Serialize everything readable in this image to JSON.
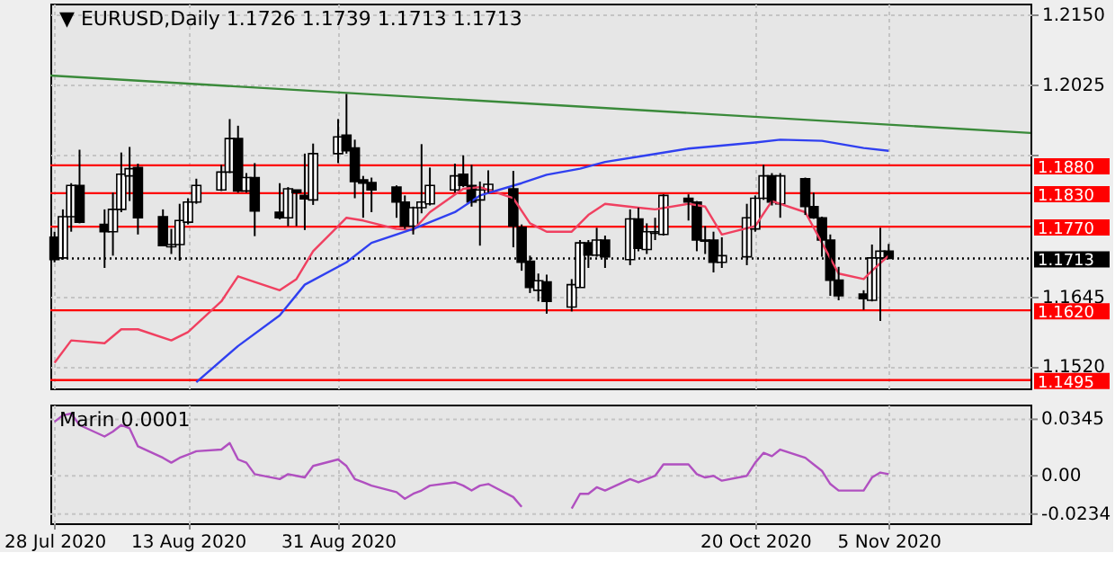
{
  "chart_data": [
    {
      "type": "candlestick",
      "title": "▼ EURUSD,Daily  1.1726 1.1739 1.1713 1.1713",
      "x": [
        "2020-07-28",
        "2020-07-29",
        "2020-07-30",
        "2020-07-31",
        "2020-08-03",
        "2020-08-04",
        "2020-08-05",
        "2020-08-06",
        "2020-08-07",
        "2020-08-10",
        "2020-08-11",
        "2020-08-12",
        "2020-08-13",
        "2020-08-14",
        "2020-08-17",
        "2020-08-18",
        "2020-08-19",
        "2020-08-20",
        "2020-08-21",
        "2020-08-24",
        "2020-08-25",
        "2020-08-26",
        "2020-08-27",
        "2020-08-28",
        "2020-08-31",
        "2020-09-01",
        "2020-09-02",
        "2020-09-03",
        "2020-09-04",
        "2020-09-07",
        "2020-09-08",
        "2020-09-09",
        "2020-09-10",
        "2020-09-11",
        "2020-09-14",
        "2020-09-15",
        "2020-09-16",
        "2020-09-17",
        "2020-09-18",
        "2020-09-21",
        "2020-09-22",
        "2020-09-23",
        "2020-09-24",
        "2020-09-25",
        "2020-09-28",
        "2020-09-29",
        "2020-09-30",
        "2020-10-01",
        "2020-10-02",
        "2020-10-05",
        "2020-10-06",
        "2020-10-07",
        "2020-10-08",
        "2020-10-09",
        "2020-10-12",
        "2020-10-13",
        "2020-10-14",
        "2020-10-15",
        "2020-10-16",
        "2020-10-19",
        "2020-10-20",
        "2020-10-21",
        "2020-10-22",
        "2020-10-23",
        "2020-10-26",
        "2020-10-27",
        "2020-10-28",
        "2020-10-29",
        "2020-10-30",
        "2020-11-02",
        "2020-11-03",
        "2020-11-04",
        "2020-11-05"
      ],
      "ohlc": [
        [
          1.1751,
          1.1761,
          1.1706,
          1.1711
        ],
        [
          1.1714,
          1.1801,
          1.1711,
          1.1788
        ],
        [
          1.1788,
          1.1848,
          1.1761,
          1.1844
        ],
        [
          1.1844,
          1.1908,
          1.1776,
          1.1778
        ],
        [
          1.1774,
          1.1801,
          1.1696,
          1.1761
        ],
        [
          1.1761,
          1.1831,
          1.1718,
          1.1801
        ],
        [
          1.1801,
          1.1903,
          1.1796,
          1.1864
        ],
        [
          1.1861,
          1.1913,
          1.1816,
          1.1874
        ],
        [
          1.1876,
          1.1883,
          1.1756,
          1.1786
        ],
        [
          1.1788,
          1.1801,
          1.1736,
          1.1736
        ],
        [
          1.1734,
          1.1766,
          1.1721,
          1.1738
        ],
        [
          1.1738,
          1.1811,
          1.1709,
          1.1781
        ],
        [
          1.1778,
          1.1821,
          1.1774,
          1.1814
        ],
        [
          1.1814,
          1.1856,
          1.1811,
          1.1844
        ],
        [
          1.1836,
          1.1881,
          1.1834,
          1.1868
        ],
        [
          1.1868,
          1.1963,
          1.1866,
          1.1928
        ],
        [
          1.1928,
          1.1951,
          1.1831,
          1.1834
        ],
        [
          1.1834,
          1.1866,
          1.1831,
          1.1858
        ],
        [
          1.1858,
          1.1884,
          1.1753,
          1.1798
        ],
        [
          1.1796,
          1.1848,
          1.1783,
          1.1786
        ],
        [
          1.1786,
          1.1841,
          1.1771,
          1.1838
        ],
        [
          1.1836,
          1.1836,
          1.1771,
          1.1831
        ],
        [
          1.1826,
          1.1901,
          1.1764,
          1.182
        ],
        [
          1.1818,
          1.1919,
          1.1809,
          1.1901
        ],
        [
          1.1901,
          1.1963,
          1.1884,
          1.1931
        ],
        [
          1.1934,
          1.2008,
          1.1901,
          1.1906
        ],
        [
          1.1911,
          1.1926,
          1.1821,
          1.1851
        ],
        [
          1.1854,
          1.1861,
          1.1786,
          1.1848
        ],
        [
          1.1849,
          1.1858,
          1.1796,
          1.1836
        ],
        [
          1.1841,
          1.1844,
          1.1786,
          1.1814
        ],
        [
          1.1814,
          1.1826,
          1.1766,
          1.1771
        ],
        [
          1.1771,
          1.1806,
          1.1756,
          1.1804
        ],
        [
          1.1804,
          1.1918,
          1.1794,
          1.1814
        ],
        [
          1.1811,
          1.1876,
          1.1808,
          1.1844
        ],
        [
          1.1836,
          1.1883,
          1.1831,
          1.1861
        ],
        [
          1.1864,
          1.1898,
          1.1841,
          1.1844
        ],
        [
          1.1844,
          1.1881,
          1.1806,
          1.1814
        ],
        [
          1.1818,
          1.1851,
          1.1736,
          1.1836
        ],
        [
          1.1836,
          1.1871,
          1.1831,
          1.1846
        ],
        [
          1.1838,
          1.187,
          1.1733,
          1.1771
        ],
        [
          1.1769,
          1.1774,
          1.1691,
          1.1706
        ],
        [
          1.1708,
          1.1718,
          1.1651,
          1.1661
        ],
        [
          1.1656,
          1.1686,
          1.1636,
          1.1673
        ],
        [
          1.1671,
          1.1684,
          1.1614,
          1.1636
        ],
        [
          1.1626,
          1.1676,
          1.1618,
          1.1666
        ],
        [
          1.1661,
          1.1746,
          1.1661,
          1.1741
        ],
        [
          1.1741,
          1.1746,
          1.1696,
          1.1719
        ],
        [
          1.1719,
          1.1768,
          1.1716,
          1.1746
        ],
        [
          1.1746,
          1.1754,
          1.1696,
          1.1716
        ],
        [
          1.1711,
          1.1801,
          1.1701,
          1.1784
        ],
        [
          1.1784,
          1.1804,
          1.1726,
          1.1731
        ],
        [
          1.1729,
          1.1776,
          1.1721,
          1.1761
        ],
        [
          1.1758,
          1.1786,
          1.1746,
          1.1761
        ],
        [
          1.1756,
          1.1828,
          1.1754,
          1.1826
        ],
        [
          1.1821,
          1.1828,
          1.1781,
          1.1814
        ],
        [
          1.1814,
          1.1816,
          1.1726,
          1.1746
        ],
        [
          1.1746,
          1.1771,
          1.1721,
          1.1744
        ],
        [
          1.1746,
          1.1761,
          1.1688,
          1.1706
        ],
        [
          1.1706,
          1.1751,
          1.1696,
          1.1718
        ],
        [
          1.1716,
          1.1811,
          1.1701,
          1.1786
        ],
        [
          1.1766,
          1.1826,
          1.1761,
          1.1821
        ],
        [
          1.1821,
          1.1881,
          1.1818,
          1.1861
        ],
        [
          1.1861,
          1.1866,
          1.1808,
          1.1814
        ],
        [
          1.1811,
          1.1866,
          1.1786,
          1.1861
        ],
        [
          1.1856,
          1.1858,
          1.1791,
          1.1806
        ],
        [
          1.1806,
          1.1831,
          1.1784,
          1.1786
        ],
        [
          1.1786,
          1.1788,
          1.1716,
          1.1746
        ],
        [
          1.1746,
          1.1756,
          1.1646,
          1.1674
        ],
        [
          1.1674,
          1.1698,
          1.1638,
          1.1646
        ],
        [
          1.1649,
          1.1656,
          1.1621,
          1.1641
        ],
        [
          1.1638,
          1.1738,
          1.1636,
          1.1714
        ],
        [
          1.1714,
          1.1768,
          1.1601,
          1.1726
        ],
        [
          1.1726,
          1.1739,
          1.1713,
          1.1713
        ]
      ],
      "series": [
        {
          "type": "line",
          "color": "#3a8a3a",
          "x": [
            "2020-07-27T12:00",
            "2020-11-22"
          ],
          "values": [
            1.2041,
            1.1938
          ]
        },
        {
          "type": "line",
          "color": "#f04060",
          "x": [
            "2020-07-28",
            "2020-07-30",
            "2020-08-03",
            "2020-08-05",
            "2020-08-07",
            "2020-08-11",
            "2020-08-13",
            "2020-08-17",
            "2020-08-19",
            "2020-08-21",
            "2020-08-24",
            "2020-08-26",
            "2020-08-28",
            "2020-09-01",
            "2020-09-03",
            "2020-09-07",
            "2020-09-09",
            "2020-09-11",
            "2020-09-15",
            "2020-09-17",
            "2020-09-21",
            "2020-09-23",
            "2020-09-25",
            "2020-09-28",
            "2020-09-30",
            "2020-10-02",
            "2020-10-06",
            "2020-10-08",
            "2020-10-12",
            "2020-10-14",
            "2020-10-16",
            "2020-10-20",
            "2020-10-22",
            "2020-10-26",
            "2020-10-28",
            "2020-10-30",
            "2020-11-02",
            "2020-11-03",
            "2020-11-05"
          ],
          "values": [
            1.1526,
            1.1566,
            1.1561,
            1.1586,
            1.1586,
            1.1566,
            1.1581,
            1.1636,
            1.1681,
            1.1671,
            1.1656,
            1.1676,
            1.1726,
            1.1786,
            1.1781,
            1.1766,
            1.1764,
            1.1796,
            1.1838,
            1.1841,
            1.1821,
            1.1776,
            1.1761,
            1.1761,
            1.1791,
            1.1811,
            1.1804,
            1.1801,
            1.1811,
            1.1806,
            1.1756,
            1.1771,
            1.1816,
            1.1796,
            1.1741,
            1.1686,
            1.1676,
            1.1691,
            1.1718
          ]
        },
        {
          "type": "line",
          "color": "#3040f0",
          "x": [
            "2020-08-14",
            "2020-08-19",
            "2020-08-24",
            "2020-08-27",
            "2020-09-01",
            "2020-09-04",
            "2020-09-09",
            "2020-09-14",
            "2020-09-17",
            "2020-09-22",
            "2020-09-25",
            "2020-09-29",
            "2020-10-02",
            "2020-10-07",
            "2020-10-12",
            "2020-10-15",
            "2020-10-20",
            "2020-10-23",
            "2020-10-28",
            "2020-11-02",
            "2020-11-05"
          ],
          "values": [
            1.1491,
            1.1556,
            1.1611,
            1.1666,
            1.1706,
            1.1741,
            1.1766,
            1.1796,
            1.1826,
            1.1848,
            1.1863,
            1.1874,
            1.1886,
            1.1898,
            1.191,
            1.1914,
            1.1921,
            1.1926,
            1.1924,
            1.1911,
            1.1906
          ]
        }
      ],
      "ref_lines": [
        {
          "axis": "y",
          "value": 1.188,
          "label": "1.1880",
          "color": "#ff0000"
        },
        {
          "axis": "y",
          "value": 1.183,
          "label": "1.1830",
          "color": "#ff0000"
        },
        {
          "axis": "y",
          "value": 1.177,
          "label": "1.1770",
          "color": "#ff0000"
        },
        {
          "axis": "y",
          "value": 1.1713,
          "label": "1.1713",
          "color": "#000000",
          "line_style": "dotted"
        },
        {
          "axis": "y",
          "value": 1.162,
          "label": "1.1620",
          "color": "#ff0000"
        },
        {
          "axis": "y",
          "value": 1.1495,
          "label": "1.1495",
          "color": "#ff0000"
        }
      ],
      "xlim": [
        "2020-07-27T12:00",
        "2020-11-22"
      ],
      "xticks": [
        {
          "value": "2020-07-28",
          "label": null
        },
        {
          "value": "2020-08-13",
          "label": null
        },
        {
          "value": "2020-08-31",
          "label": null
        },
        {
          "value": "2020-10-20",
          "label": null
        },
        {
          "value": "2020-11-05",
          "label": null
        }
      ],
      "ylim": [
        1.148,
        1.217
      ],
      "yticks": [
        {
          "value": 1.215,
          "label": "1.2150"
        },
        {
          "value": 1.2025,
          "label": "1.2025"
        },
        {
          "value": 1.19,
          "label": null
        },
        {
          "value": 1.1645,
          "label": "1.1645"
        },
        {
          "value": 1.152,
          "label": "1.1520"
        }
      ],
      "grid": true,
      "tick_labels": "y"
    },
    {
      "type": "line",
      "title": "Marin 0.0001",
      "x": [
        "2020-07-28",
        "2020-07-29",
        "2020-07-30",
        "2020-07-31",
        "2020-08-03",
        "2020-08-04",
        "2020-08-05",
        "2020-08-06",
        "2020-08-07",
        "2020-08-10",
        "2020-08-11",
        "2020-08-12",
        "2020-08-13",
        "2020-08-14",
        "2020-08-17",
        "2020-08-18",
        "2020-08-19",
        "2020-08-20",
        "2020-08-21",
        "2020-08-24",
        "2020-08-25",
        "2020-08-26",
        "2020-08-27",
        "2020-08-28",
        "2020-08-31",
        "2020-09-01",
        "2020-09-02",
        "2020-09-03",
        "2020-09-04",
        "2020-09-07",
        "2020-09-08",
        "2020-09-09",
        "2020-09-10",
        "2020-09-11",
        "2020-09-14",
        "2020-09-15",
        "2020-09-16",
        "2020-09-17",
        "2020-09-18",
        "2020-09-21",
        "2020-09-22",
        "2020-09-23",
        "2020-09-24",
        "2020-09-25",
        "2020-09-28",
        "2020-09-29",
        "2020-09-30",
        "2020-10-01",
        "2020-10-02",
        "2020-10-05",
        "2020-10-06",
        "2020-10-07",
        "2020-10-08",
        "2020-10-09",
        "2020-10-12",
        "2020-10-13",
        "2020-10-14",
        "2020-10-15",
        "2020-10-16",
        "2020-10-19",
        "2020-10-20",
        "2020-10-21",
        "2020-10-22",
        "2020-10-23",
        "2020-10-26",
        "2020-10-27",
        "2020-10-28",
        "2020-10-29",
        "2020-10-30",
        "2020-11-02",
        "2020-11-03",
        "2020-11-04",
        "2020-11-05"
      ],
      "series": [
        {
          "color": "#b050c0",
          "values": [
            0.033,
            0.037,
            0.038,
            0.031,
            0.024,
            0.027,
            0.031,
            0.029,
            0.018,
            0.011,
            0.008,
            0.011,
            0.013,
            0.015,
            0.016,
            0.02,
            0.01,
            0.008,
            0.001,
            -0.002,
            0.001,
            0.0,
            -0.001,
            0.006,
            0.01,
            0.006,
            -0.002,
            -0.004,
            -0.006,
            -0.01,
            -0.014,
            -0.011,
            -0.009,
            -0.006,
            -0.004,
            -0.006,
            -0.009,
            -0.006,
            -0.005,
            -0.013,
            -0.019,
            null,
            null,
            null,
            -0.02,
            -0.011,
            -0.011,
            -0.007,
            -0.009,
            -0.002,
            -0.004,
            -0.002,
            0.0,
            0.007,
            0.007,
            0.001,
            -0.001,
            0.0,
            -0.003,
            0.0,
            0.008,
            0.014,
            0.012,
            0.016,
            0.011,
            0.007,
            0.003,
            -0.005,
            -0.009,
            -0.009,
            -0.001,
            0.002,
            0.001
          ]
        }
      ],
      "xlim": [
        "2020-07-27T12:00",
        "2020-11-22"
      ],
      "xticks": [
        {
          "value": "2020-07-28",
          "label": "28 Jul 2020"
        },
        {
          "value": "2020-08-13",
          "label": "13 Aug 2020"
        },
        {
          "value": "2020-08-31",
          "label": "31 Aug 2020"
        },
        {
          "value": "2020-10-20",
          "label": "20 Oct 2020"
        },
        {
          "value": "2020-11-05",
          "label": "5 Nov 2020"
        }
      ],
      "ylim": [
        -0.029,
        0.0435
      ],
      "yticks": [
        0.0345,
        {
          "value": 0,
          "label": "0.00"
        },
        -0.0234
      ],
      "grid": true
    }
  ]
}
